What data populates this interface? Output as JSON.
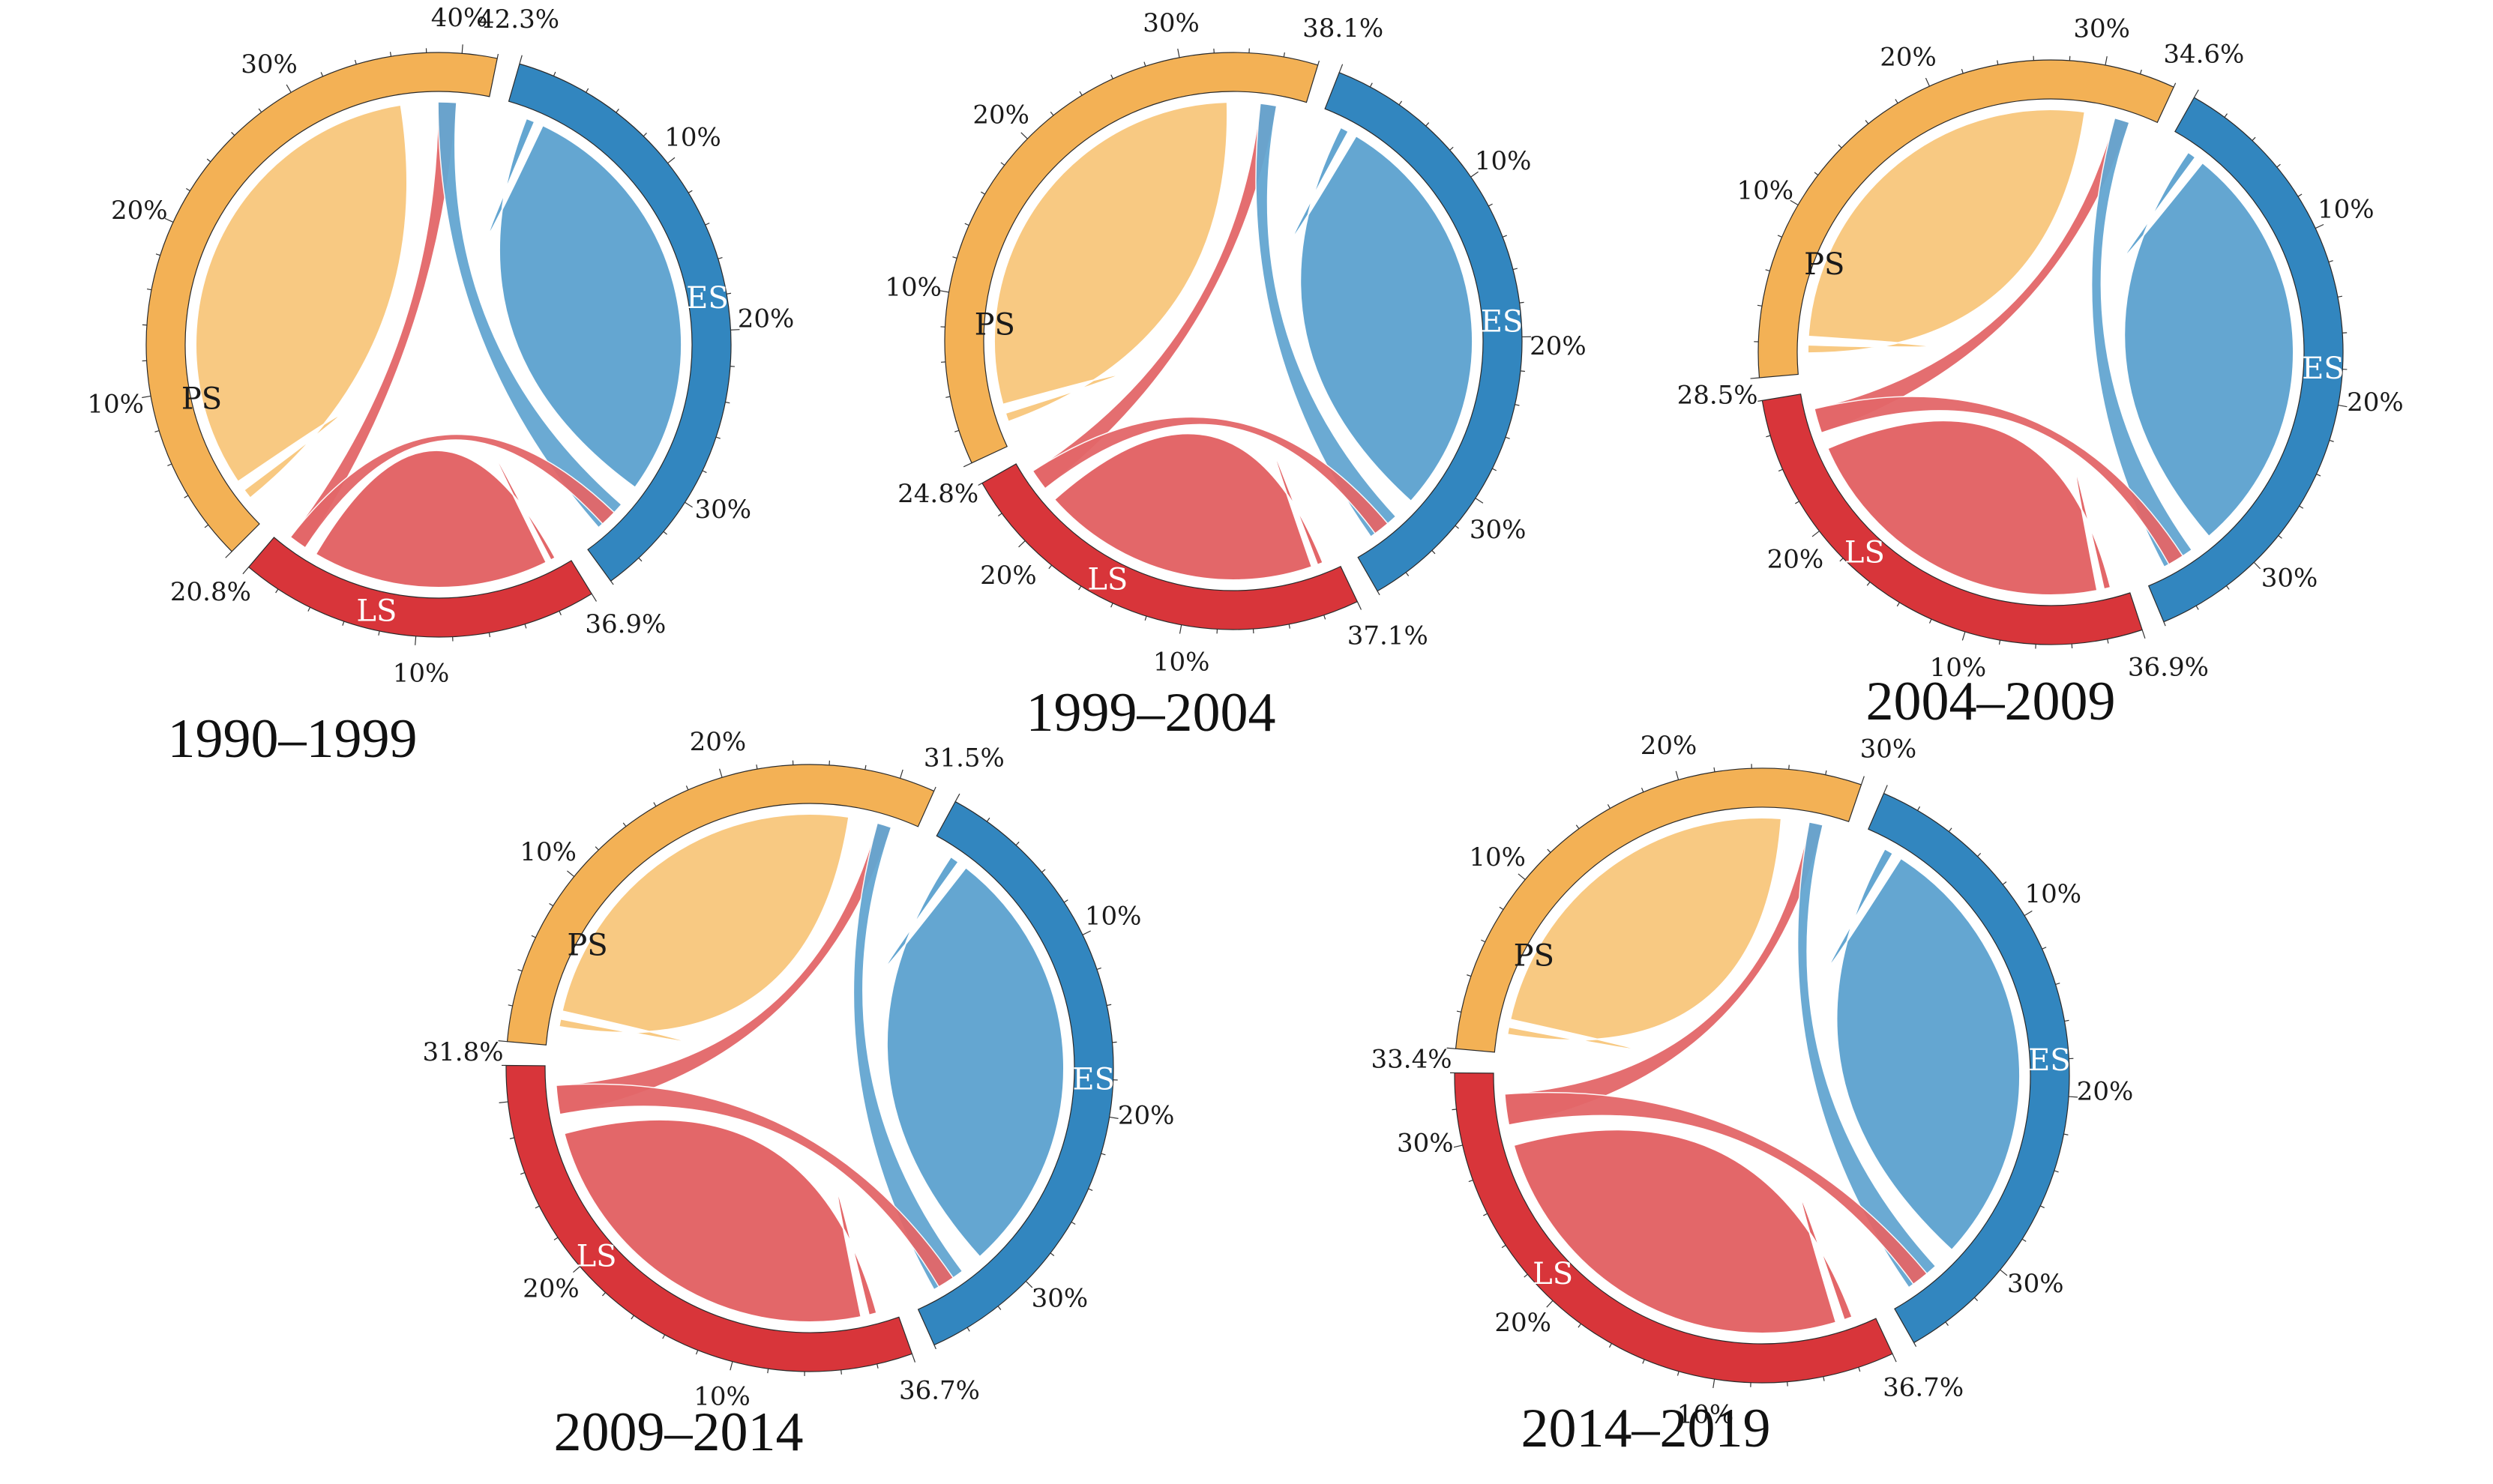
{
  "colors": {
    "PS": {
      "outer": "#F3B155",
      "inner": "#F8C982"
    },
    "ES": {
      "outer": "#3286BF",
      "inner": "#64A6D1"
    },
    "LS": {
      "outer": "#D8353A",
      "inner": "#E36769"
    }
  },
  "charts": [
    {
      "title": "1990–1999",
      "segments": [
        {
          "name": "PS",
          "share_pct": 42.3,
          "start_label": "20.8%",
          "end_label": "42.3%",
          "ticks": [
            "10%",
            "20%",
            "30%",
            "40%"
          ]
        },
        {
          "name": "ES",
          "share_pct": 36.9,
          "start_label": "42.3%",
          "end_label": "36.9%",
          "ticks": [
            "10%",
            "20%",
            "30%"
          ]
        },
        {
          "name": "LS",
          "share_pct": 20.8,
          "start_label": "36.9%",
          "end_label": "20.8%",
          "ticks": [
            "10%"
          ]
        }
      ]
    },
    {
      "title": "1999–2004",
      "segments": [
        {
          "name": "PS",
          "share_pct": 38.1,
          "start_label": "24.8%",
          "end_label": "38.1%",
          "ticks": [
            "10%",
            "20%",
            "30%"
          ]
        },
        {
          "name": "ES",
          "share_pct": 37.1,
          "start_label": "38.1%",
          "end_label": "37.1%",
          "ticks": [
            "10%",
            "20%",
            "30%"
          ]
        },
        {
          "name": "LS",
          "share_pct": 24.8,
          "start_label": "37.1%",
          "end_label": "24.8%",
          "ticks": [
            "10%",
            "20%"
          ]
        }
      ]
    },
    {
      "title": "2004–2009",
      "segments": [
        {
          "name": "PS",
          "share_pct": 34.6,
          "start_label": "28.5%",
          "end_label": "34.6%",
          "ticks": [
            "10%",
            "20%",
            "30%"
          ]
        },
        {
          "name": "ES",
          "share_pct": 36.9,
          "start_label": "34.6%",
          "end_label": "36.9%",
          "ticks": [
            "10%",
            "20%",
            "30%"
          ]
        },
        {
          "name": "LS",
          "share_pct": 28.5,
          "start_label": "36.9%",
          "end_label": "28.5%",
          "ticks": [
            "10%",
            "20%"
          ]
        }
      ]
    },
    {
      "title": "2009–2014",
      "segments": [
        {
          "name": "PS",
          "share_pct": 31.5,
          "start_label": "31.8%",
          "end_label": "31.5%",
          "ticks": [
            "10%",
            "20%"
          ]
        },
        {
          "name": "ES",
          "share_pct": 36.7,
          "start_label": "31.5%",
          "end_label": "36.7%",
          "ticks": [
            "10%",
            "20%",
            "30%"
          ]
        },
        {
          "name": "LS",
          "share_pct": 31.8,
          "start_label": "36.7%",
          "end_label": "31.8%",
          "ticks": [
            "10%",
            "20%"
          ]
        }
      ]
    },
    {
      "title": "2014–2019",
      "segments": [
        {
          "name": "PS",
          "share_pct": 30.0,
          "start_label": "33.4%",
          "end_label": "30%",
          "ticks": [
            "10%",
            "20%"
          ]
        },
        {
          "name": "ES",
          "share_pct": 36.7,
          "start_label": "30%",
          "end_label": "36.7%",
          "ticks": [
            "10%",
            "20%",
            "30%"
          ]
        },
        {
          "name": "LS",
          "share_pct": 33.4,
          "start_label": "36.7%",
          "end_label": "33.4%",
          "ticks": [
            "10%",
            "20%",
            "30%"
          ]
        }
      ]
    }
  ]
}
